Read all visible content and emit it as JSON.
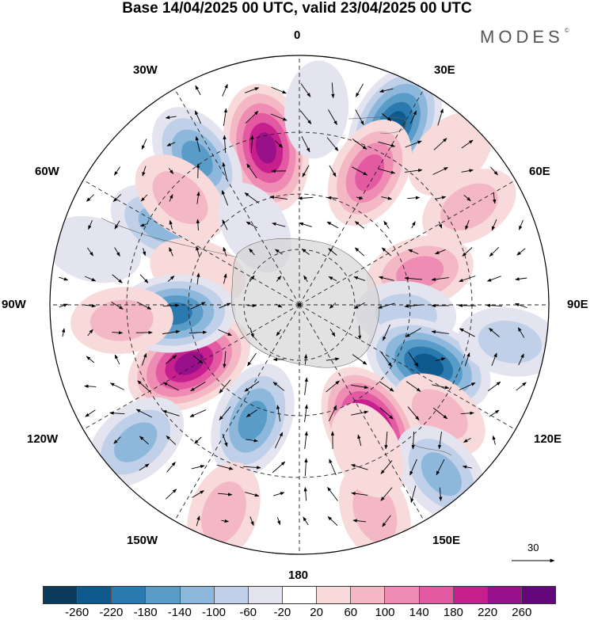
{
  "title": "Base 14/04/2025 00 UTC, valid 23/04/2025 00 UTC",
  "brand": "MODES",
  "brand_mark": "©",
  "map_labels": {
    "top": "0",
    "bottom": "180",
    "left": "90W",
    "right": "90E",
    "w30": "30W",
    "e30": "30E",
    "w60": "60W",
    "e60": "60E",
    "w120": "120W",
    "e120": "120E",
    "w150": "150W",
    "e150": "150E"
  },
  "vector_reference": {
    "value": "30"
  },
  "colorbar": {
    "colors": [
      "#0b3c5d",
      "#0f5a8c",
      "#2a7ab0",
      "#5a9cc8",
      "#8db8dc",
      "#bfd0e8",
      "#e4e4f0",
      "#ffffff",
      "#f8dada",
      "#f4b8c4",
      "#ee8cb4",
      "#e45aa2",
      "#c81f8e",
      "#98108a",
      "#62087a"
    ],
    "ticks": [
      "-260",
      "-220",
      "-180",
      "-140",
      "-100",
      "-60",
      "-20",
      "20",
      "60",
      "100",
      "140",
      "180",
      "220",
      "260"
    ]
  },
  "anomalies": [
    {
      "lat": 45,
      "lon": -12,
      "value": 240
    },
    {
      "lat": 33,
      "lon": 28,
      "value": -230
    },
    {
      "lat": 40,
      "lon": -35,
      "value": -150
    },
    {
      "lat": 45,
      "lon": -60,
      "value": -100
    },
    {
      "lat": 60,
      "lon": -72,
      "value": 40
    },
    {
      "lat": 45,
      "lon": -48,
      "value": 80
    },
    {
      "lat": 48,
      "lon": 28,
      "value": 140
    },
    {
      "lat": 55,
      "lon": 75,
      "value": 110
    },
    {
      "lat": 60,
      "lon": 95,
      "value": -60
    },
    {
      "lat": 50,
      "lon": 115,
      "value": -250
    },
    {
      "lat": 40,
      "lon": 128,
      "value": 70
    },
    {
      "lat": 50,
      "lon": 150,
      "value": 260
    },
    {
      "lat": 55,
      "lon": -158,
      "value": -170
    },
    {
      "lat": 55,
      "lon": -118,
      "value": 250
    },
    {
      "lat": 55,
      "lon": -94,
      "value": -190
    },
    {
      "lat": 40,
      "lon": -95,
      "value": 70
    },
    {
      "lat": 30,
      "lon": -130,
      "value": -120
    },
    {
      "lat": 28,
      "lon": -160,
      "value": 80
    },
    {
      "lat": 28,
      "lon": 160,
      "value": 70
    },
    {
      "lat": 28,
      "lon": 140,
      "value": -130
    },
    {
      "lat": 45,
      "lon": 155,
      "value": 50
    },
    {
      "lat": 35,
      "lon": 60,
      "value": 60
    },
    {
      "lat": 30,
      "lon": -75,
      "value": -40
    },
    {
      "lat": 30,
      "lon": 100,
      "value": -80
    },
    {
      "lat": 30,
      "lon": 45,
      "value": 50
    },
    {
      "lat": 65,
      "lon": -30,
      "value": -30
    },
    {
      "lat": 35,
      "lon": 5,
      "value": -40
    }
  ]
}
